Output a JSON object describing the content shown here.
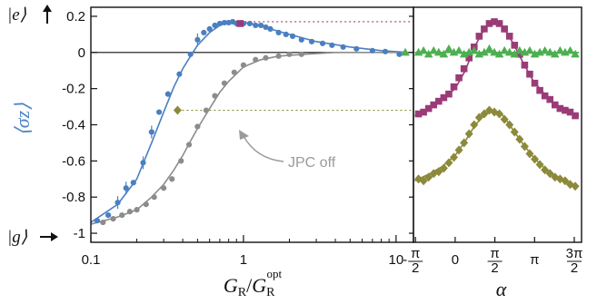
{
  "chart_data": [
    {
      "type": "scatter",
      "x_scale": "log",
      "xlim": [
        0.1,
        13
      ],
      "ylim": [
        -1.05,
        0.25
      ],
      "x_tick_labels": [
        "0.1",
        "1",
        "10"
      ],
      "y_tick_labels": [
        "0.2",
        "0",
        "-0.2",
        "-0.4",
        "-0.6",
        "-0.8",
        "-1"
      ],
      "y_ticks": [
        0.2,
        0,
        -0.2,
        -0.4,
        -0.6,
        -0.8,
        -1
      ],
      "xlabel": "G_R/G_R^opt",
      "ylabel": "⟨σz⟩",
      "state_labels": {
        "excited": "|e⟩",
        "ground": "|g⟩"
      },
      "annotation": "JPC off",
      "colors": {
        "jpc_on": "#4a7fc1",
        "jpc_off": "#8c8c8c",
        "magenta": "#9a3b78",
        "olive": "#8c8a3a",
        "green": "#4caf50"
      },
      "series": [
        {
          "marker": "circle",
          "color": "#4a7fc1",
          "x": [
            0.11,
            0.13,
            0.15,
            0.17,
            0.19,
            0.22,
            0.25,
            0.28,
            0.32,
            0.38,
            0.45,
            0.5,
            0.55,
            0.6,
            0.65,
            0.7,
            0.75,
            0.8,
            0.85,
            0.9,
            1.0,
            1.1,
            1.2,
            1.3,
            1.4,
            1.5,
            1.7,
            1.9,
            2.1,
            2.4,
            2.8,
            3.3,
            3.8,
            4.5,
            5.5,
            7.0,
            8.5,
            10.5
          ],
          "y": [
            -0.93,
            -0.9,
            -0.83,
            -0.75,
            -0.72,
            -0.61,
            -0.44,
            -0.33,
            -0.23,
            -0.12,
            -0.01,
            0.07,
            0.11,
            0.13,
            0.15,
            0.16,
            0.165,
            0.165,
            0.17,
            0.16,
            0.16,
            0.16,
            0.15,
            0.15,
            0.14,
            0.13,
            0.11,
            0.1,
            0.09,
            0.07,
            0.06,
            0.05,
            0.04,
            0.03,
            0.02,
            0.01,
            0.005,
            -0.01
          ]
        },
        {
          "marker": "circle",
          "color": "#8c8c8c",
          "x": [
            0.12,
            0.14,
            0.16,
            0.18,
            0.2,
            0.23,
            0.26,
            0.3,
            0.34,
            0.39,
            0.44,
            0.5,
            0.57,
            0.65,
            0.75,
            0.87,
            1.0,
            1.2,
            1.4,
            1.7,
            2.0,
            2.4
          ],
          "y": [
            -0.94,
            -0.92,
            -0.9,
            -0.88,
            -0.87,
            -0.84,
            -0.8,
            -0.75,
            -0.7,
            -0.6,
            -0.51,
            -0.41,
            -0.32,
            -0.24,
            -0.17,
            -0.11,
            -0.07,
            -0.04,
            -0.03,
            -0.02,
            -0.01,
            -0.01
          ]
        },
        {
          "marker": "square",
          "color": "#9a3b78",
          "x": [
            0.95
          ],
          "y": [
            0.16
          ]
        },
        {
          "marker": "diamond",
          "color": "#8c8a3a",
          "x": [
            0.37
          ],
          "y": [
            -0.32
          ]
        },
        {
          "marker": "triangle",
          "color": "#4caf50",
          "x": [
            11.5
          ],
          "y": [
            0.0
          ]
        }
      ],
      "curves": [
        {
          "color": "#4a7fc1",
          "x": [
            0.1,
            0.15,
            0.2,
            0.25,
            0.3,
            0.35,
            0.4,
            0.45,
            0.5,
            0.6,
            0.7,
            0.8,
            0.9,
            1.0,
            1.2,
            1.5,
            2.0,
            3.0,
            5.0,
            8.0,
            12.0
          ],
          "y": [
            -0.94,
            -0.84,
            -0.7,
            -0.5,
            -0.33,
            -0.19,
            -0.09,
            -0.02,
            0.04,
            0.11,
            0.15,
            0.165,
            0.17,
            0.165,
            0.155,
            0.13,
            0.1,
            0.06,
            0.03,
            0.01,
            0.0
          ]
        },
        {
          "color": "#8c8c8c",
          "x": [
            0.1,
            0.15,
            0.2,
            0.25,
            0.3,
            0.35,
            0.4,
            0.45,
            0.5,
            0.6,
            0.7,
            0.8,
            1.0,
            1.3,
            1.7,
            2.5,
            4.0,
            7.0,
            12.0
          ],
          "y": [
            -0.95,
            -0.91,
            -0.87,
            -0.8,
            -0.73,
            -0.65,
            -0.57,
            -0.49,
            -0.42,
            -0.31,
            -0.22,
            -0.16,
            -0.08,
            -0.04,
            -0.02,
            -0.01,
            0.0,
            0.0,
            0.0
          ]
        }
      ]
    },
    {
      "type": "scatter",
      "xlim": [
        -1.65,
        5.0
      ],
      "ylim": [
        -1.05,
        0.25
      ],
      "x_tick_values": [
        -1.5708,
        0,
        1.5708,
        3.1416,
        4.7124
      ],
      "x_tick_labels": [
        "-π/2",
        "0",
        "π/2",
        "π",
        "3π/2"
      ],
      "xlabel": "α",
      "series": [
        {
          "marker": "square",
          "color": "#9a3b78",
          "x": [
            -1.45,
            -1.25,
            -1.05,
            -0.85,
            -0.65,
            -0.45,
            -0.25,
            -0.05,
            0.15,
            0.35,
            0.55,
            0.75,
            0.95,
            1.15,
            1.35,
            1.55,
            1.75,
            1.95,
            2.15,
            2.35,
            2.55,
            2.75,
            2.95,
            3.15,
            3.35,
            3.55,
            3.75,
            3.95,
            4.15,
            4.35,
            4.55,
            4.75
          ],
          "y": [
            -0.34,
            -0.33,
            -0.31,
            -0.29,
            -0.27,
            -0.25,
            -0.23,
            -0.19,
            -0.14,
            -0.09,
            -0.03,
            0.03,
            0.09,
            0.13,
            0.16,
            0.17,
            0.16,
            0.13,
            0.09,
            0.04,
            -0.01,
            -0.07,
            -0.12,
            -0.17,
            -0.21,
            -0.24,
            -0.26,
            -0.29,
            -0.31,
            -0.32,
            -0.33,
            -0.35
          ]
        },
        {
          "marker": "diamond",
          "color": "#8c8a3a",
          "x": [
            -1.45,
            -1.25,
            -1.05,
            -0.85,
            -0.65,
            -0.45,
            -0.25,
            -0.05,
            0.15,
            0.35,
            0.55,
            0.75,
            0.95,
            1.15,
            1.35,
            1.55,
            1.75,
            1.95,
            2.15,
            2.35,
            2.55,
            2.75,
            2.95,
            3.15,
            3.35,
            3.55,
            3.75,
            3.95,
            4.15,
            4.35,
            4.55,
            4.75
          ],
          "y": [
            -0.7,
            -0.71,
            -0.69,
            -0.67,
            -0.66,
            -0.64,
            -0.61,
            -0.58,
            -0.54,
            -0.5,
            -0.45,
            -0.4,
            -0.36,
            -0.34,
            -0.32,
            -0.33,
            -0.34,
            -0.37,
            -0.4,
            -0.44,
            -0.48,
            -0.52,
            -0.56,
            -0.59,
            -0.62,
            -0.65,
            -0.67,
            -0.69,
            -0.7,
            -0.71,
            -0.73,
            -0.74
          ]
        },
        {
          "marker": "triangle",
          "color": "#4caf50",
          "x": [
            -1.45,
            -1.25,
            -1.05,
            -0.85,
            -0.65,
            -0.45,
            -0.25,
            -0.05,
            0.15,
            0.35,
            0.55,
            0.75,
            0.95,
            1.15,
            1.35,
            1.55,
            1.75,
            1.95,
            2.15,
            2.35,
            2.55,
            2.75,
            2.95,
            3.15,
            3.35,
            3.55,
            3.75,
            3.95,
            4.15,
            4.35,
            4.55,
            4.75
          ],
          "y": [
            0.0,
            0.01,
            -0.01,
            0.01,
            0.0,
            -0.01,
            0.02,
            0.0,
            0.01,
            -0.01,
            0.0,
            0.01,
            -0.01,
            0.0,
            0.02,
            0.0,
            -0.01,
            0.01,
            0.0,
            -0.01,
            0.01,
            0.0,
            0.01,
            -0.01,
            0.0,
            0.01,
            0.0,
            -0.01,
            0.01,
            0.0,
            0.01,
            -0.01
          ]
        }
      ],
      "curves": [
        {
          "color": "#9a3b78",
          "x": [
            -1.6,
            -1.0,
            -0.5,
            0.0,
            0.4,
            0.8,
            1.2,
            1.5708,
            1.9,
            2.3,
            2.7,
            3.1,
            3.6,
            4.0,
            4.5,
            4.9
          ],
          "y": [
            -0.35,
            -0.31,
            -0.26,
            -0.2,
            -0.1,
            0.04,
            0.14,
            0.17,
            0.14,
            0.05,
            -0.06,
            -0.16,
            -0.24,
            -0.29,
            -0.33,
            -0.35
          ]
        },
        {
          "color": "#8c8a3a",
          "x": [
            -1.6,
            -1.0,
            -0.5,
            0.0,
            0.4,
            0.8,
            1.2,
            1.5708,
            1.9,
            2.3,
            2.7,
            3.1,
            3.6,
            4.0,
            4.5,
            4.9
          ],
          "y": [
            -0.71,
            -0.67,
            -0.63,
            -0.57,
            -0.49,
            -0.4,
            -0.34,
            -0.32,
            -0.35,
            -0.43,
            -0.51,
            -0.58,
            -0.65,
            -0.69,
            -0.72,
            -0.74
          ]
        },
        {
          "color": "#4caf50",
          "x": [
            -1.6,
            4.9
          ],
          "y": [
            0.0,
            0.0
          ]
        }
      ],
      "reference_lines": [
        {
          "color": "#9a3b78",
          "y": 0.17
        },
        {
          "color": "#8c8a3a",
          "y": -0.32
        }
      ]
    }
  ]
}
